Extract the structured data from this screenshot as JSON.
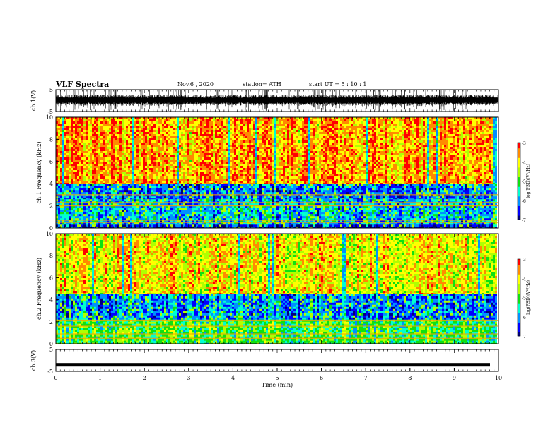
{
  "header": {
    "title": "VLF Spectra",
    "date": "Nov.6 , 2020",
    "station": "station= ATH",
    "start": "start UT = 5 : 10 : 1"
  },
  "chart_data": [
    {
      "type": "line",
      "ylabel": "ch.1(V)",
      "xlim": [
        0,
        10
      ],
      "ylim": [
        -5,
        5
      ],
      "yticks": [
        "5",
        "-5"
      ],
      "description_values": "dense broadband waveform noise, amplitude roughly spanning -5 to 5 V"
    },
    {
      "type": "heatmap",
      "ylabel": "ch.1 Frequency (kHz)",
      "xlim": [
        0,
        10
      ],
      "ylim": [
        0,
        10
      ],
      "yticks": [
        "0",
        "2",
        "4",
        "6",
        "8",
        "10"
      ],
      "colorbar": {
        "label": "log(PSD)(V²/Hz)",
        "ticks": [
          "-3",
          "-4",
          "-5",
          "-6",
          "-7"
        ],
        "range": [
          -7,
          -3
        ]
      },
      "bands": [
        {
          "f_min": 4.0,
          "f_max": 10.0,
          "level": -3.6
        },
        {
          "f_min": 2.6,
          "f_max": 4.0,
          "level": -6.1
        },
        {
          "f_min": 0.3,
          "f_max": 2.6,
          "level": -5.8
        },
        {
          "f_min": 0.0,
          "f_max": 0.3,
          "level": -6.5
        }
      ],
      "lines_khz": [
        0.5,
        0.7,
        2.0,
        2.3,
        3.0
      ]
    },
    {
      "type": "heatmap",
      "ylabel": "ch.2 Frequency (kHz)",
      "xlim": [
        0,
        10
      ],
      "ylim": [
        0,
        10
      ],
      "yticks": [
        "0",
        "2",
        "4",
        "6",
        "8",
        "10"
      ],
      "colorbar": {
        "label": "log(PSD)(V²/Hz)",
        "ticks": [
          "-3",
          "-4",
          "-5",
          "-6",
          "-7"
        ],
        "range": [
          -7,
          -3
        ]
      },
      "bands": [
        {
          "f_min": 4.5,
          "f_max": 10.0,
          "level": -4.0
        },
        {
          "f_min": 2.2,
          "f_max": 4.5,
          "level": -6.0
        },
        {
          "f_min": 0.0,
          "f_max": 2.2,
          "level": -5.0
        }
      ],
      "lines_khz": [
        0.5,
        0.9,
        1.6,
        2.1
      ]
    },
    {
      "type": "line",
      "ylabel": "ch.3(V)",
      "xlabel": "Time (min)",
      "xlim": [
        0,
        10
      ],
      "ylim": [
        -5,
        5
      ],
      "yticks": [
        "5",
        "-5"
      ],
      "xticks": [
        "0",
        "1",
        "2",
        "3",
        "4",
        "5",
        "6",
        "7",
        "8",
        "9",
        "10"
      ],
      "constant_value": -2
    }
  ],
  "colors": {
    "scale": [
      "#000080",
      "#0000ff",
      "#00aaff",
      "#00ffaa",
      "#00e000",
      "#ffff00",
      "#ff8000",
      "#ff0000",
      "#ffffff"
    ]
  }
}
